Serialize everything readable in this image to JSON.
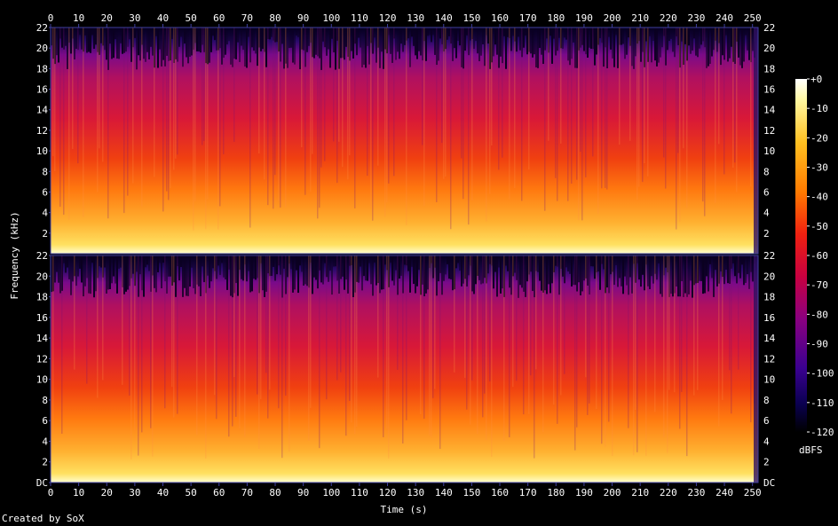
{
  "chart_data": {
    "type": "heatmap",
    "subtype": "spectrogram",
    "xlabel": "Time (s)",
    "ylabel": "Frequency (kHz)",
    "xlim": [
      0,
      252
    ],
    "x_ticks": [
      "0",
      "10",
      "20",
      "30",
      "40",
      "50",
      "60",
      "70",
      "80",
      "90",
      "100",
      "110",
      "120",
      "130",
      "140",
      "150",
      "160",
      "170",
      "180",
      "190",
      "200",
      "210",
      "220",
      "230",
      "240",
      "250"
    ],
    "channels": [
      {
        "ylim": [
          0,
          22
        ],
        "y_ticks": [
          "2",
          "4",
          "6",
          "8",
          "10",
          "12",
          "14",
          "16",
          "18",
          "20",
          "22"
        ]
      },
      {
        "ylim": [
          0,
          22
        ],
        "y_ticks": [
          "DC",
          "2",
          "4",
          "6",
          "8",
          "10",
          "12",
          "14",
          "16",
          "18",
          "20",
          "22"
        ]
      }
    ],
    "colorbar": {
      "label": "dBFS",
      "range": [
        -120,
        0
      ],
      "ticks": [
        "+0",
        "-10",
        "-20",
        "-30",
        "-40",
        "-50",
        "-60",
        "-70",
        "-80",
        "-90",
        "-100",
        "-110",
        "-120"
      ],
      "colormap": "sox-spectrogram"
    },
    "grid": false
  },
  "credit": "Created by SoX",
  "colors": {
    "background": "#000000",
    "axis": "#4040a0",
    "text": "#ffffff"
  }
}
